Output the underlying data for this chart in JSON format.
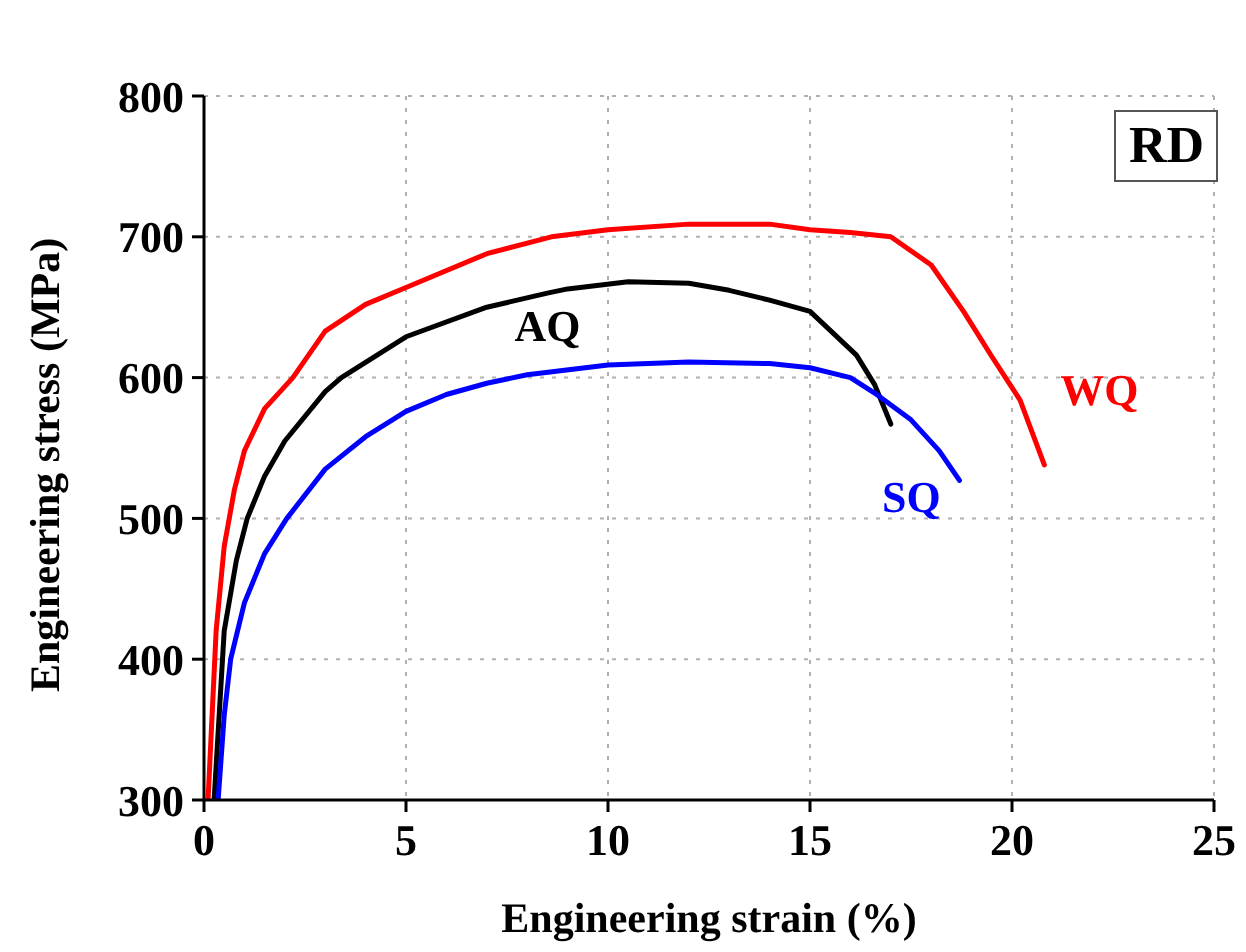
{
  "chart_data": {
    "type": "line",
    "xlabel": "Engineering strain (%)",
    "ylabel": "Engineering stress (MPa)",
    "xlim": [
      0,
      25
    ],
    "xticks": [
      0,
      5,
      10,
      15,
      20,
      25
    ],
    "ylim": [
      300,
      800
    ],
    "yticks": [
      300,
      400,
      500,
      600,
      700,
      800
    ],
    "grid": true,
    "legend": false,
    "marker": "none",
    "line_style": "solid",
    "annotations": [
      "RD"
    ],
    "series": [
      {
        "name": "WQ",
        "color": "#ff0000",
        "x": [
          0.1,
          0.3,
          0.5,
          0.75,
          1,
          1.5,
          2.2,
          3,
          4,
          5,
          7,
          8.6,
          10,
          12,
          14,
          15,
          16,
          17,
          18,
          18.8,
          19.5,
          20.2,
          20.8
        ],
        "values": [
          300,
          420,
          480,
          520,
          548,
          578,
          600,
          633,
          652,
          664,
          688,
          700,
          705,
          709,
          709,
          705,
          703,
          700,
          680,
          647,
          615,
          584,
          538
        ]
      },
      {
        "name": "AQ",
        "color": "#000000",
        "x": [
          0.25,
          0.5,
          0.8,
          1.07,
          1.5,
          2,
          3,
          3.4,
          5,
          7,
          8.5,
          9,
          10.5,
          12,
          13,
          14,
          15,
          16.15,
          16.6,
          17
        ],
        "values": [
          300,
          420,
          470,
          500,
          530,
          555,
          590,
          600,
          629,
          650,
          660,
          663,
          668,
          667,
          662,
          655,
          647,
          616,
          595,
          567
        ]
      },
      {
        "name": "SQ",
        "color": "#0000ff",
        "x": [
          0.35,
          0.5,
          0.66,
          1,
          1.5,
          2.05,
          3,
          4,
          5,
          6,
          7,
          8,
          10,
          12,
          14,
          15,
          16,
          16.6,
          17.5,
          18.2,
          18.7
        ],
        "values": [
          300,
          360,
          400,
          440,
          475,
          500,
          535,
          558,
          576,
          588,
          596,
          602,
          609,
          611,
          610,
          607,
          600,
          589,
          570,
          548,
          527
        ]
      }
    ]
  }
}
